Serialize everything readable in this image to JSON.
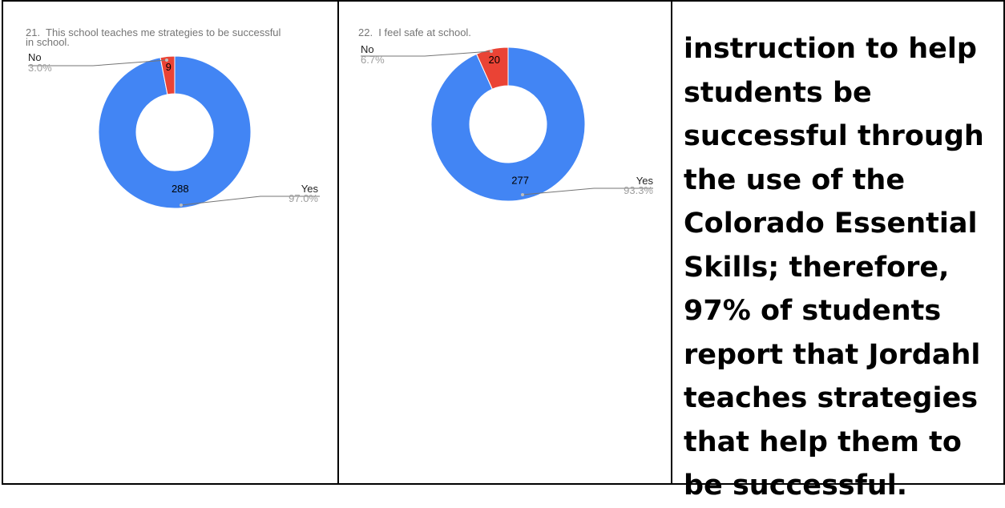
{
  "chart_data": [
    {
      "type": "pie",
      "title": "21.  This school teaches me strategies to be successful\nin school.",
      "categories": [
        "Yes",
        "No"
      ],
      "values": [
        288,
        9
      ],
      "percent_labels": [
        "97.0%",
        "3.0%"
      ],
      "colors": [
        "#4285f4",
        "#ea4335"
      ],
      "donut": true
    },
    {
      "type": "pie",
      "title": "22.  I feel safe at school.",
      "categories": [
        "Yes",
        "No"
      ],
      "values": [
        277,
        20
      ],
      "percent_labels": [
        "93.3%",
        "6.7%"
      ],
      "colors": [
        "#4285f4",
        "#ea4335"
      ],
      "donut": true
    }
  ],
  "text_cell": {
    "paragraph": "instruction to help students be successful through the use of the Colorado Essential Skills; therefore, 97% of students report that Jordahl teaches strategies that help them to be successful."
  }
}
